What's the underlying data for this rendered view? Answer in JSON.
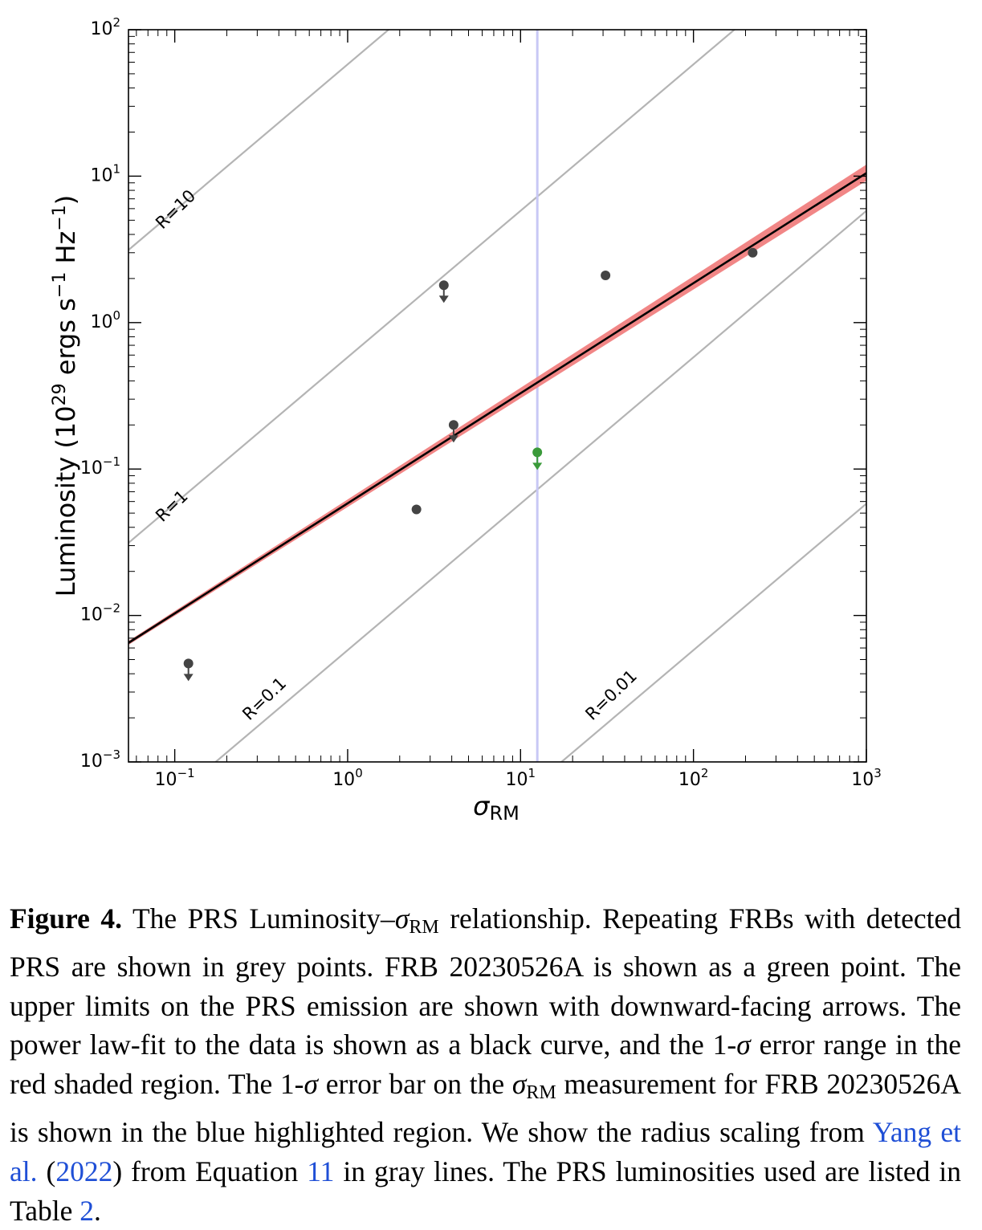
{
  "chart_data": {
    "type": "scatter",
    "xlabel": "σ",
    "xlabel_subscript": "RM",
    "ylabel": "Luminosity (10",
    "ylabel_exp1": "29",
    "ylabel_mid": " ergs s",
    "ylabel_exp2": "−1",
    "ylabel_mid2": " Hz",
    "ylabel_exp3": "−1",
    "ylabel_end": ")",
    "x_scale": "log",
    "y_scale": "log",
    "xlim": [
      0.054,
      1000
    ],
    "ylim": [
      0.001,
      100
    ],
    "x_ticks": [
      {
        "base": "10",
        "exp": "−1",
        "value": 0.1
      },
      {
        "base": "10",
        "exp": "0",
        "value": 1
      },
      {
        "base": "10",
        "exp": "1",
        "value": 10
      },
      {
        "base": "10",
        "exp": "2",
        "value": 100
      },
      {
        "base": "10",
        "exp": "3",
        "value": 1000
      }
    ],
    "y_ticks": [
      {
        "base": "10",
        "exp": "−3",
        "value": 0.001
      },
      {
        "base": "10",
        "exp": "−2",
        "value": 0.01
      },
      {
        "base": "10",
        "exp": "−1",
        "value": 0.1
      },
      {
        "base": "10",
        "exp": "0",
        "value": 1
      },
      {
        "base": "10",
        "exp": "1",
        "value": 10
      },
      {
        "base": "10",
        "exp": "2",
        "value": 100
      }
    ],
    "points": [
      {
        "x": 0.12,
        "y": 0.0047,
        "upper_limit": true,
        "color": "#444444"
      },
      {
        "x": 2.5,
        "y": 0.053,
        "upper_limit": false,
        "color": "#444444"
      },
      {
        "x": 3.6,
        "y": 1.8,
        "upper_limit": true,
        "color": "#444444"
      },
      {
        "x": 4.1,
        "y": 0.2,
        "upper_limit": true,
        "color": "#444444"
      },
      {
        "x": 31,
        "y": 2.1,
        "upper_limit": false,
        "color": "#444444"
      },
      {
        "x": 220,
        "y": 3.0,
        "upper_limit": false,
        "color": "#444444"
      },
      {
        "x": 12.5,
        "y": 0.13,
        "upper_limit": true,
        "color": "#3a9a3a"
      }
    ],
    "fit": {
      "x": [
        0.054,
        1000
      ],
      "y": [
        0.0065,
        10.5
      ],
      "y_upper": [
        0.0067,
        12.0
      ],
      "y_lower": [
        0.0063,
        9.3
      ],
      "color": "#000000",
      "band_color": "#f08080"
    },
    "sigma_rm_line": {
      "x": 12.5,
      "color": "#c8c8f5"
    },
    "radius_lines": [
      {
        "label": "R=10",
        "intercept": 58,
        "label_x": 0.085,
        "label_y": 4.3
      },
      {
        "label": "R=1",
        "intercept": 0.58,
        "label_x": 0.085,
        "label_y": 0.043
      },
      {
        "label": "R=0.1",
        "intercept": 0.0058,
        "label_x": 0.27,
        "label_y": 0.0019
      },
      {
        "label": "R=0.01",
        "intercept": 5.8e-05,
        "label_x": 26,
        "label_y": 0.0019
      }
    ],
    "grey_line_color": "#b4b4b4"
  },
  "caption": {
    "lead": "Figure 4.",
    "t1": " The PRS Luminosity–",
    "sigma": "σ",
    "sub_rm": "RM",
    "t2": " relationship. Repeating FRBs with detected PRS are shown in grey points. FRB 20230526A is shown as a green point. The upper limits on the PRS emission are shown with downward-facing arrows. The power law-fit to the data is shown as a black curve, and the 1-",
    "sigma2": "σ",
    "t3": " error range in the red shaded region. The 1-",
    "sigma3": "σ",
    "t4": " error bar on the ",
    "sigma4": "σ",
    "sub_rm2": "RM",
    "t5": " measurement for FRB 20230526A is shown in the blue highlighted region. We show the radius scaling from ",
    "ref_authors": "Yang et al.",
    "ref_open": " (",
    "ref_year": "2022",
    "ref_close": ") from Equation ",
    "eq_num": "11",
    "t6": " in gray lines. The PRS luminosities used are listed in Table ",
    "table_num": "2",
    "t7": "."
  }
}
